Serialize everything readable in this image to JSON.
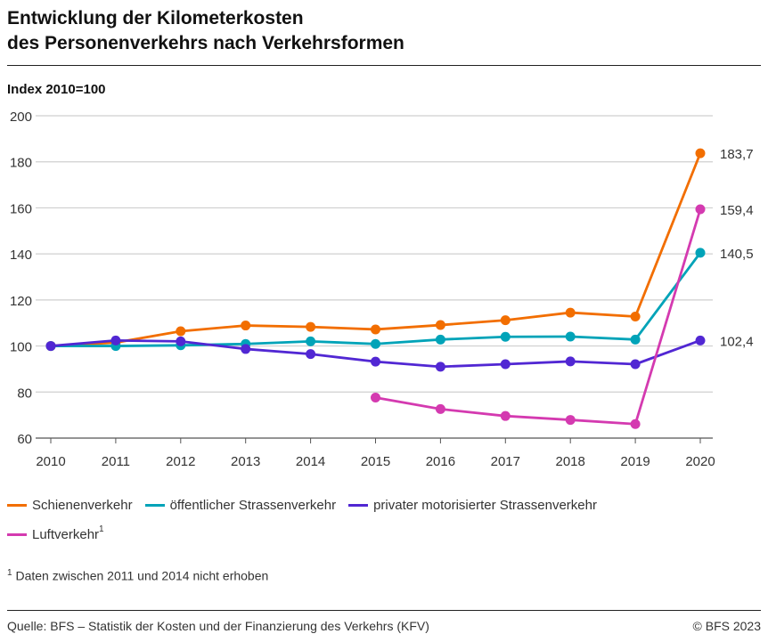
{
  "chart_data": {
    "type": "line",
    "title": "Entwicklung der Kilometerkosten des Personenverkehrs nach Verkehrsformen",
    "title_lines": [
      "Entwicklung der Kilometerkosten",
      "des Personenverkehrs nach Verkehrsformen"
    ],
    "ylabel": "Index 2010=100",
    "ylim": [
      60,
      200
    ],
    "yticks": [
      "60",
      "80",
      "100",
      "120",
      "140",
      "160",
      "180",
      "200"
    ],
    "ytick_values": [
      60,
      80,
      100,
      120,
      140,
      160,
      180,
      200
    ],
    "x": [
      "2010",
      "2011",
      "2012",
      "2013",
      "2014",
      "2015",
      "2016",
      "2017",
      "2018",
      "2019",
      "2020"
    ],
    "grid": "horizontal",
    "legend_position": "bottom",
    "series": [
      {
        "name": "Schienenverkehr",
        "color": "#f26e00",
        "values": [
          100,
          101.5,
          106.4,
          108.9,
          108.3,
          107.2,
          109.1,
          111.2,
          114.5,
          112.8,
          183.7
        ],
        "end_label": "183,7"
      },
      {
        "name": "öffentlicher Strassenverkehr",
        "color": "#00a3b8",
        "values": [
          100,
          100,
          100.3,
          100.9,
          102.0,
          100.9,
          102.8,
          104.0,
          104.1,
          102.8,
          140.5
        ],
        "end_label": "140,5"
      },
      {
        "name": "privater motorisierter Strassenverkehr",
        "color": "#5127d3",
        "values": [
          100,
          102.4,
          102.0,
          98.7,
          96.5,
          93.2,
          91.0,
          92.1,
          93.3,
          92.1,
          102.4
        ],
        "end_label": "102,4"
      },
      {
        "name": "Luftverkehr",
        "footnote_mark": "1",
        "color": "#d43ab0",
        "values": [
          null,
          null,
          null,
          null,
          null,
          77.6,
          72.6,
          69.6,
          67.9,
          66.1,
          159.4
        ],
        "end_label": "159,4"
      }
    ]
  },
  "footnote": {
    "mark": "1",
    "text": "Daten zwischen 2011 und 2014 nicht erhoben"
  },
  "source": "Quelle: BFS – Statistik der Kosten und der Finanzierung des Verkehrs (KFV)",
  "copyright": "© BFS 2023"
}
